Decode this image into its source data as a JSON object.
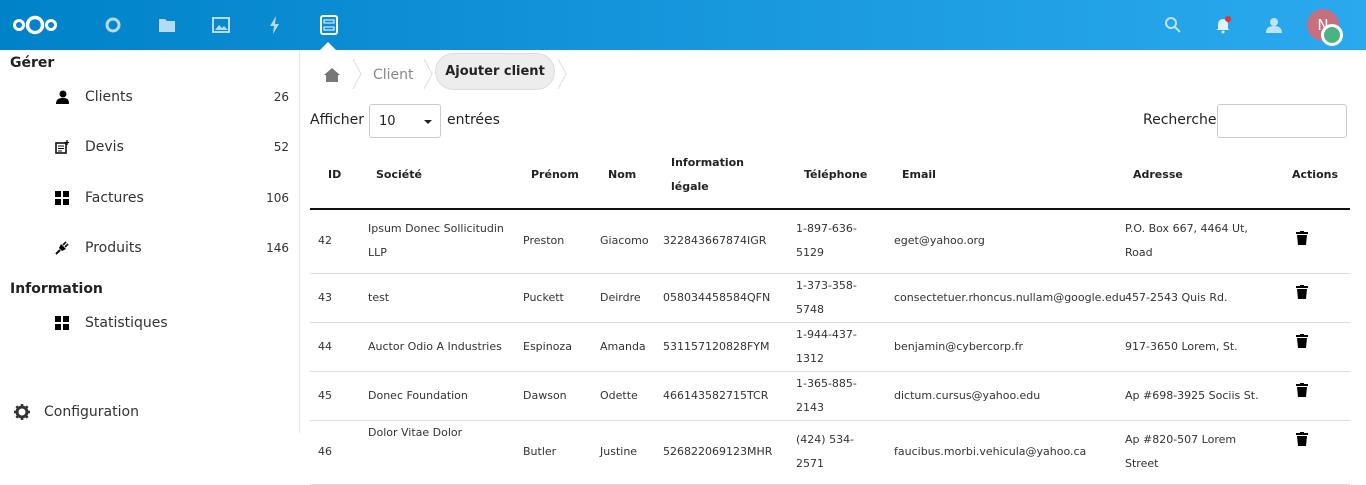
{
  "header": {
    "apps": [
      "dashboard-icon",
      "files-icon",
      "photos-icon",
      "activity-icon",
      "clients-app-icon"
    ],
    "avatar_initial": "N",
    "colors": {
      "bar": "#0082c9",
      "avatar": "#c6707f",
      "status": "#49b382",
      "notification": "#e9322d"
    }
  },
  "sidebar": {
    "section1": "Gérer",
    "items": [
      {
        "label": "Clients",
        "count": "26",
        "icon": "user-icon"
      },
      {
        "label": "Devis",
        "count": "52",
        "icon": "note-add-icon"
      },
      {
        "label": "Factures",
        "count": "106",
        "icon": "grid-icon"
      },
      {
        "label": "Produits",
        "count": "146",
        "icon": "plug-icon"
      }
    ],
    "section2": "Information",
    "info_items": [
      {
        "label": "Statistiques",
        "icon": "grid-icon"
      }
    ],
    "settings": "Configuration"
  },
  "breadcrumb": {
    "client": "Client",
    "current": "Ajouter client"
  },
  "table_controls": {
    "show_label": "Afficher",
    "page_size": "10",
    "entries_label": "entrées",
    "search_label": "Recherche",
    "search_value": ""
  },
  "table": {
    "headers": [
      "ID",
      "Société",
      "Prénom",
      "Nom",
      "Information légale",
      "Téléphone",
      "Email",
      "Adresse",
      "Actions"
    ],
    "rows": [
      [
        "42",
        "Ipsum Donec Sollicitudin LLP",
        "Preston",
        "Giacomo",
        "322843667874IGR",
        "1-897-636-5129",
        "eget@yahoo.org",
        "P.O. Box 667, 4464 Ut, Road"
      ],
      [
        "43",
        "test",
        "Puckett",
        "Deirdre",
        "058034458584QFN",
        "1-373-358-5748",
        "consectetuer.rhoncus.nullam@google.edu",
        "457-2543 Quis Rd."
      ],
      [
        "44",
        "Auctor Odio A Industries",
        "Espinoza",
        "Amanda",
        "531157120828FYM",
        "1-944-437-1312",
        "benjamin@cybercorp.fr",
        "917-3650 Lorem, St."
      ],
      [
        "45",
        "Donec Foundation",
        "Dawson",
        "Odette",
        "466143582715TCR",
        "1-365-885-2143",
        "dictum.cursus@yahoo.edu",
        "Ap #698-3925 Sociis St."
      ],
      [
        "46",
        "Dolor Vitae Dolor",
        "Butler",
        "Justine",
        "526822069123MHR",
        "(424) 534-2571",
        "faucibus.morbi.vehicula@yahoo.ca",
        "Ap #820-507 Lorem Street"
      ]
    ]
  }
}
